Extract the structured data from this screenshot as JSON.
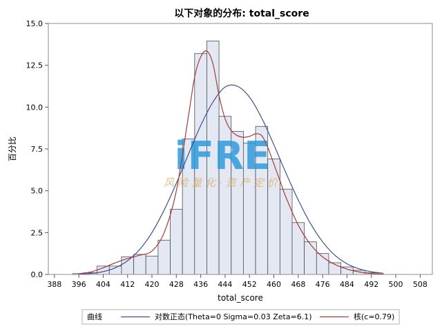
{
  "chart_data": {
    "type": "bar",
    "title": "以下对象的分布: total_score",
    "xlabel": "total_score",
    "ylabel": "百分比",
    "xlim": [
      386,
      512
    ],
    "ylim": [
      0,
      15
    ],
    "x_ticks": [
      "388",
      "396",
      "404",
      "412",
      "420",
      "428",
      "436",
      "444",
      "452",
      "460",
      "468",
      "476",
      "484",
      "492",
      "500",
      "508"
    ],
    "y_ticks": [
      "0.0",
      "2.5",
      "5.0",
      "7.5",
      "10.0",
      "12.5",
      "15.0"
    ],
    "bin_width": 4,
    "bins": [
      {
        "x": 396,
        "value": 0.05
      },
      {
        "x": 400,
        "value": 0.1
      },
      {
        "x": 404,
        "value": 0.5
      },
      {
        "x": 408,
        "value": 0.5
      },
      {
        "x": 412,
        "value": 1.05
      },
      {
        "x": 416,
        "value": 1.2
      },
      {
        "x": 420,
        "value": 1.1
      },
      {
        "x": 424,
        "value": 2.05
      },
      {
        "x": 428,
        "value": 3.9
      },
      {
        "x": 432,
        "value": 8.1
      },
      {
        "x": 436,
        "value": 13.2
      },
      {
        "x": 440,
        "value": 13.95
      },
      {
        "x": 444,
        "value": 9.45
      },
      {
        "x": 448,
        "value": 8.55
      },
      {
        "x": 452,
        "value": 7.85
      },
      {
        "x": 456,
        "value": 8.85
      },
      {
        "x": 460,
        "value": 6.9
      },
      {
        "x": 464,
        "value": 5.1
      },
      {
        "x": 468,
        "value": 3.1
      },
      {
        "x": 472,
        "value": 1.95
      },
      {
        "x": 476,
        "value": 1.25
      },
      {
        "x": 480,
        "value": 0.7
      },
      {
        "x": 484,
        "value": 0.45
      },
      {
        "x": 488,
        "value": 0.25
      },
      {
        "x": 492,
        "value": 0.1
      }
    ],
    "series": [
      {
        "name": "对数正态(Theta=0 Sigma=0.03 Zeta=6.1)",
        "color": "#3c4f8c",
        "points": [
          [
            396,
            0.02
          ],
          [
            400,
            0.06
          ],
          [
            404,
            0.17
          ],
          [
            408,
            0.4
          ],
          [
            412,
            0.82
          ],
          [
            416,
            1.5
          ],
          [
            420,
            2.5
          ],
          [
            424,
            3.85
          ],
          [
            428,
            5.45
          ],
          [
            432,
            7.2
          ],
          [
            436,
            8.9
          ],
          [
            440,
            10.3
          ],
          [
            444,
            11.2
          ],
          [
            448,
            11.25
          ],
          [
            452,
            10.6
          ],
          [
            456,
            9.35
          ],
          [
            460,
            7.75
          ],
          [
            464,
            6.05
          ],
          [
            468,
            4.45
          ],
          [
            472,
            3.05
          ],
          [
            476,
            1.95
          ],
          [
            480,
            1.15
          ],
          [
            484,
            0.64
          ],
          [
            488,
            0.33
          ],
          [
            492,
            0.16
          ],
          [
            496,
            0.07
          ]
        ]
      },
      {
        "name": "核(c=0.79)",
        "color": "#a33a34",
        "points": [
          [
            396,
            0.05
          ],
          [
            400,
            0.15
          ],
          [
            404,
            0.4
          ],
          [
            408,
            0.7
          ],
          [
            412,
            0.95
          ],
          [
            416,
            1.15
          ],
          [
            420,
            1.4
          ],
          [
            424,
            2.5
          ],
          [
            428,
            5.0
          ],
          [
            432,
            9.5
          ],
          [
            434,
            11.8
          ],
          [
            436,
            13.0
          ],
          [
            438,
            13.35
          ],
          [
            440,
            12.6
          ],
          [
            442,
            10.7
          ],
          [
            444,
            9.3
          ],
          [
            446,
            8.6
          ],
          [
            448,
            8.3
          ],
          [
            450,
            8.2
          ],
          [
            452,
            8.25
          ],
          [
            454,
            8.4
          ],
          [
            456,
            8.3
          ],
          [
            458,
            7.6
          ],
          [
            460,
            6.6
          ],
          [
            462,
            5.6
          ],
          [
            464,
            4.6
          ],
          [
            468,
            2.95
          ],
          [
            472,
            1.8
          ],
          [
            476,
            1.05
          ],
          [
            480,
            0.6
          ],
          [
            484,
            0.32
          ],
          [
            488,
            0.15
          ],
          [
            492,
            0.06
          ],
          [
            496,
            0.02
          ]
        ]
      }
    ],
    "legend_position": "bottom",
    "grid": false
  },
  "legend": {
    "title": "曲线",
    "items": [
      "对数正态(Theta=0 Sigma=0.03 Zeta=6.1)",
      "核(c=0.79)"
    ]
  },
  "watermark": {
    "main": "iFRE",
    "sub": "风险量化·资产定价"
  },
  "colors": {
    "bar_fill": "#e4e8f3",
    "bar_stroke": "#4a4a5a"
  }
}
